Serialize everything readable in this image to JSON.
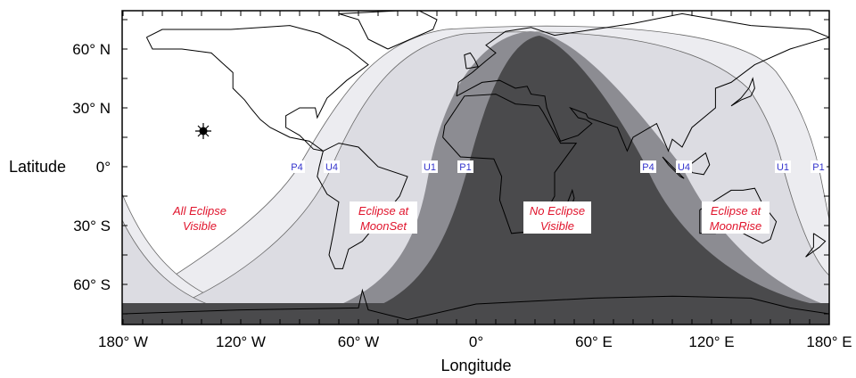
{
  "map": {
    "axis": {
      "x_title": "Longitude",
      "y_title": "Latitude",
      "x_ticks": [
        "180° W",
        "120° W",
        "60° W",
        "0°",
        "60° E",
        "120° E",
        "180° E"
      ],
      "x_tick_values": [
        -180,
        -120,
        -60,
        0,
        60,
        120,
        180
      ],
      "y_ticks": [
        "60° N",
        "30° N",
        "0°",
        "30° S",
        "60° S"
      ],
      "y_tick_values": [
        60,
        30,
        0,
        -30,
        -60
      ]
    },
    "regions": [
      {
        "line1": "All Eclipse",
        "line2": "Visible"
      },
      {
        "line1": "Eclipse at",
        "line2": "MoonSet"
      },
      {
        "line1": "No Eclipse",
        "line2": "Visible"
      },
      {
        "line1": "Eclipse at",
        "line2": "MoonRise"
      }
    ],
    "contacts": [
      "P4",
      "U4",
      "U1",
      "P1",
      "P4",
      "U4",
      "U1",
      "P1"
    ],
    "sub_moon_marker": "sun-star-icon",
    "colors": {
      "all_visible": "#ffffff",
      "penumbral": "#ececf0",
      "umbral": "#dcdce2",
      "partial": "#8c8c92",
      "no_eclipse": "#4a4a4c",
      "region_label": "#e0142c",
      "contact_label": "#3333cc"
    }
  }
}
